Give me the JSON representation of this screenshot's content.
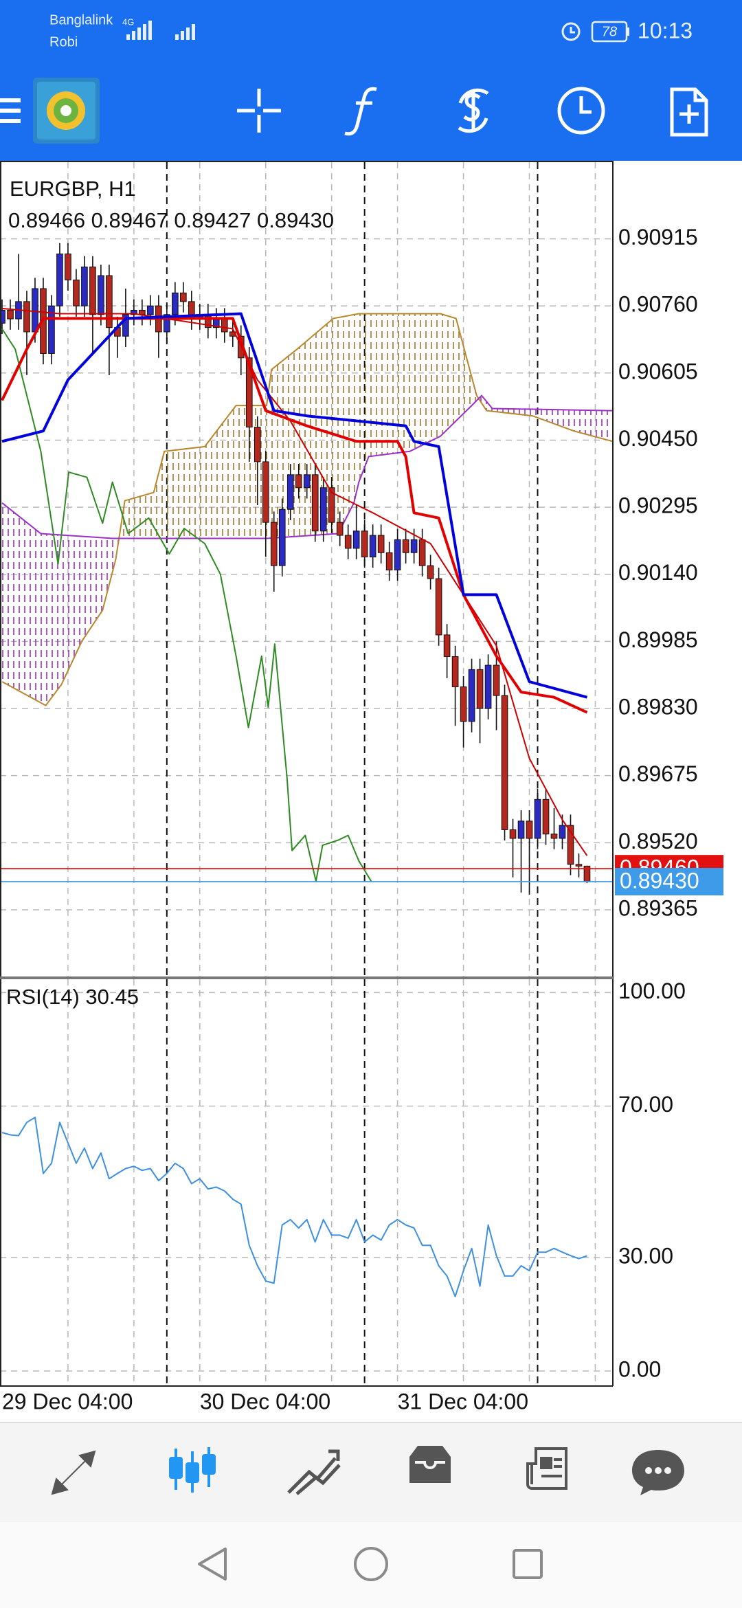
{
  "status_bar": {
    "carrier1": "Banglalink",
    "carrier2": "Robi",
    "network": "4G",
    "battery": "78",
    "time": "10:13"
  },
  "chart_data": [
    {
      "type": "candlestick",
      "title": "EURGBP, H1",
      "subtitle": "0.89466 0.89467 0.89427 0.89430",
      "x": [
        0,
        1,
        2,
        3,
        4,
        5,
        6,
        7,
        8,
        9,
        10,
        11,
        12,
        13,
        14,
        15,
        16,
        17,
        18,
        19,
        20,
        21,
        22,
        23,
        24,
        25,
        26,
        27,
        28,
        29,
        30,
        31,
        32,
        33,
        34,
        35,
        36,
        37,
        38,
        39,
        40,
        41,
        42,
        43,
        44,
        45,
        46,
        47,
        48,
        49,
        50,
        51,
        52,
        53,
        54,
        55,
        56,
        57,
        58,
        59,
        60,
        61,
        62,
        63,
        64,
        65,
        66,
        67,
        68,
        69,
        70,
        71
      ],
      "open": [
        0.9072,
        0.9075,
        0.9073,
        0.9077,
        0.907,
        0.908,
        0.9065,
        0.9076,
        0.9088,
        0.9082,
        0.9076,
        0.9085,
        0.9074,
        0.9083,
        0.9071,
        0.9069,
        0.9074,
        0.9075,
        0.9074,
        0.9076,
        0.907,
        0.9074,
        0.9079,
        0.9077,
        0.9073,
        0.9074,
        0.9071,
        0.9073,
        0.907,
        0.9069,
        0.9064,
        0.9048,
        0.904,
        0.9026,
        0.9016,
        0.9029,
        0.9037,
        0.9034,
        0.9037,
        0.9024,
        0.9034,
        0.9026,
        0.9023,
        0.902,
        0.9024,
        0.9018,
        0.9023,
        0.9019,
        0.9015,
        0.9022,
        0.9019,
        0.9022,
        0.9016,
        0.9013,
        0.9,
        0.8995,
        0.8988,
        0.898,
        0.8992,
        0.8983,
        0.8993,
        0.8986,
        0.8955,
        0.8953,
        0.8957,
        0.8953,
        0.8962,
        0.8954,
        0.8953,
        0.8956,
        0.8947,
        0.89466
      ],
      "high": [
        0.90775,
        0.90775,
        0.9088,
        0.90795,
        0.90825,
        0.90825,
        0.90785,
        0.90905,
        0.90905,
        0.90845,
        0.90875,
        0.90875,
        0.90855,
        0.90855,
        0.90735,
        0.908,
        0.90775,
        0.90775,
        0.90785,
        0.90785,
        0.90765,
        0.90815,
        0.90815,
        0.90795,
        0.90765,
        0.90765,
        0.90755,
        0.90755,
        0.90725,
        0.90715,
        0.90665,
        0.90505,
        0.90425,
        0.90285,
        0.90315,
        0.90395,
        0.90395,
        0.90395,
        0.90395,
        0.90365,
        0.90365,
        0.90285,
        0.90255,
        0.903,
        0.90265,
        0.90255,
        0.90255,
        0.90215,
        0.90245,
        0.90245,
        0.90245,
        0.90245,
        0.90185,
        0.90155,
        0.90025,
        0.89975,
        0.89905,
        0.89945,
        0.89945,
        0.89955,
        0.89985,
        0.89885,
        0.89575,
        0.89595,
        0.89595,
        0.89645,
        0.89645,
        0.896,
        0.89585,
        0.89585,
        0.89495,
        0.89467
      ],
      "low": [
        0.90695,
        0.90705,
        0.90705,
        0.906,
        0.90675,
        0.90625,
        0.90625,
        0.90735,
        0.90795,
        0.90735,
        0.90735,
        0.9065,
        0.90715,
        0.906,
        0.9064,
        0.90665,
        0.90715,
        0.90715,
        0.90715,
        0.9064,
        0.90675,
        0.90715,
        0.90745,
        0.90705,
        0.90705,
        0.90685,
        0.90685,
        0.90675,
        0.90665,
        0.906,
        0.904,
        0.903,
        0.9018,
        0.901,
        0.90135,
        0.90265,
        0.90315,
        0.90315,
        0.90215,
        0.90215,
        0.90235,
        0.90205,
        0.90175,
        0.90175,
        0.90155,
        0.90155,
        0.90165,
        0.90125,
        0.90125,
        0.90165,
        0.90165,
        0.90135,
        0.90105,
        0.89975,
        0.899,
        0.8979,
        0.8974,
        0.89775,
        0.8975,
        0.89805,
        0.8978,
        0.89525,
        0.8944,
        0.89405,
        0.894,
        0.89505,
        0.89515,
        0.89505,
        0.89505,
        0.89445,
        0.8944,
        0.89427
      ],
      "close": [
        0.9075,
        0.9073,
        0.9077,
        0.907,
        0.908,
        0.9065,
        0.9076,
        0.9088,
        0.9082,
        0.9076,
        0.9085,
        0.9074,
        0.9083,
        0.9071,
        0.9069,
        0.9074,
        0.9075,
        0.9074,
        0.9076,
        0.907,
        0.9074,
        0.9079,
        0.9077,
        0.9073,
        0.9074,
        0.9071,
        0.9073,
        0.907,
        0.9069,
        0.9064,
        0.9048,
        0.904,
        0.9026,
        0.9016,
        0.9029,
        0.9037,
        0.9034,
        0.9037,
        0.9024,
        0.9034,
        0.9026,
        0.9023,
        0.902,
        0.9024,
        0.9018,
        0.9023,
        0.9019,
        0.9015,
        0.9022,
        0.9019,
        0.9022,
        0.9016,
        0.9013,
        0.9,
        0.8995,
        0.8988,
        0.898,
        0.8992,
        0.8983,
        0.8993,
        0.8986,
        0.8955,
        0.8953,
        0.8957,
        0.8953,
        0.8962,
        0.8954,
        0.8953,
        0.8956,
        0.8947,
        0.89466,
        0.8943
      ],
      "up_color": "#2b2bc4",
      "down_color": "#b5281d",
      "ichimoku": {
        "up_color": "#a8762a",
        "down_color": "#9a2fc4",
        "senkou_a": {
          "color": "#b8862b",
          "x": [
            0,
            5.3,
            7.2,
            9.7,
            12.2,
            13.8,
            14.9,
            18.4,
            19.7,
            24.6,
            28.4,
            32.1,
            32.7,
            35.8,
            40.2,
            43.3,
            53.2,
            55.1,
            57.6,
            58.8,
            64.4,
            69.4,
            74.1
          ],
          "values": [
            0.89892,
            0.89837,
            0.89885,
            0.89986,
            0.90057,
            0.90175,
            0.9031,
            0.90329,
            0.90424,
            0.90435,
            0.9053,
            0.9053,
            0.90613,
            0.9066,
            0.90731,
            0.90742,
            0.90742,
            0.90731,
            0.90553,
            0.90518,
            0.90506,
            0.90471,
            0.90447
          ]
        },
        "senkou_b": {
          "color": "#9b30c8",
          "x": [
            0,
            4.7,
            13.4,
            32.1,
            40.8,
            42.7,
            43.3,
            44.5,
            49.5,
            53.2,
            57,
            58.2,
            59.5,
            74.1
          ],
          "values": [
            0.90305,
            0.90234,
            0.90223,
            0.90223,
            0.90234,
            0.90305,
            0.90353,
            0.90412,
            0.90424,
            0.90459,
            0.9053,
            0.90553,
            0.90523,
            0.90518
          ]
        }
      },
      "lines": [
        {
          "color": "#cc0000",
          "bold": false,
          "x": [
            0,
            7,
            16,
            28,
            31,
            35,
            40,
            45,
            52,
            56,
            60,
            64,
            68,
            71
          ],
          "values": [
            0.90754,
            0.90742,
            0.90742,
            0.90707,
            0.90589,
            0.90494,
            0.90329,
            0.90282,
            0.90211,
            0.90093,
            0.89975,
            0.89715,
            0.89573,
            0.8949
          ]
        },
        {
          "color": "#2e8b22",
          "bold": false,
          "x": [
            0,
            1.6,
            4.7,
            6.8,
            8.1,
            10.3,
            12.2,
            13.4,
            15.3,
            17.8,
            20.3,
            22.1,
            24.6,
            26.5,
            28.4,
            29.9,
            31.5,
            32.3,
            33.1,
            34.6,
            35.2,
            36.8,
            38.1,
            38.9,
            40.8,
            42.0,
            43.3,
            44.8
          ],
          "values": [
            0.90707,
            0.9066,
            0.90424,
            0.90164,
            0.90376,
            0.90364,
            0.90258,
            0.90353,
            0.90234,
            0.9027,
            0.90187,
            0.90246,
            0.90211,
            0.9014,
            0.89951,
            0.89786,
            0.89951,
            0.89833,
            0.89979,
            0.89667,
            0.89502,
            0.89537,
            0.89431,
            0.89514,
            0.89526,
            0.89537,
            0.89478,
            0.89431
          ]
        },
        {
          "color": "#e00000",
          "bold": true,
          "x": [
            0,
            3,
            5,
            28,
            32,
            37,
            43,
            48,
            49,
            50,
            53,
            56,
            60,
            63,
            67,
            71
          ],
          "values": [
            0.90542,
            0.9066,
            0.90731,
            0.90731,
            0.90518,
            0.90483,
            0.90447,
            0.90447,
            0.90412,
            0.90282,
            0.9027,
            0.90093,
            0.89951,
            0.89868,
            0.89856,
            0.89821
          ]
        },
        {
          "color": "#0000dd",
          "bold": true,
          "x": [
            0,
            5,
            8,
            15,
            29,
            33,
            37,
            49,
            50,
            53,
            56,
            60,
            64,
            71
          ],
          "values": [
            0.90447,
            0.90471,
            0.90589,
            0.90731,
            0.90742,
            0.90518,
            0.90506,
            0.90483,
            0.90447,
            0.90435,
            0.90093,
            0.90093,
            0.89892,
            0.89856
          ]
        }
      ],
      "price_tags": [
        {
          "value": 0.8946,
          "label": "0.89460",
          "color": "#e31010"
        },
        {
          "value": 0.8943,
          "label": "0.89430",
          "color": "#3d9be9"
        }
      ],
      "xlim": [
        -0.25,
        74.13
      ],
      "ylim": [
        0.89211,
        0.91092
      ],
      "yticks": [
        0.90915,
        {
          "value": 0.9076,
          "label": "0.90760"
        },
        0.90605,
        {
          "value": 0.9045,
          "label": "0.90450"
        },
        0.90295,
        {
          "value": 0.9014,
          "label": "0.90140"
        },
        0.89985,
        {
          "value": 0.8983,
          "label": "0.89830"
        },
        0.89675,
        {
          "value": 0.8952,
          "label": "0.89520"
        },
        0.89365
      ],
      "xgrid": [
        8,
        16,
        24,
        32,
        40,
        48,
        56,
        64,
        72
      ],
      "separators": [
        20,
        44,
        65
      ],
      "grid": true
    },
    {
      "type": "line",
      "title": "RSI(14) 30.45",
      "x": [
        0,
        1,
        2,
        3,
        4,
        5,
        6,
        7,
        8,
        9,
        10,
        11,
        12,
        13,
        14,
        15,
        16,
        17,
        18,
        19,
        20,
        21,
        22,
        23,
        24,
        25,
        26,
        27,
        28,
        29,
        30,
        31,
        32,
        33,
        34,
        35,
        36,
        37,
        38,
        39,
        40,
        41,
        42,
        43,
        44,
        45,
        46,
        47,
        48,
        49,
        50,
        51,
        52,
        53,
        54,
        55,
        56,
        57,
        58,
        59,
        60,
        61,
        62,
        63,
        64,
        65,
        66,
        67,
        68,
        69,
        70,
        71
      ],
      "series": [
        {
          "color": "#3d8fe0",
          "values": [
            63.0,
            62.4,
            62.2,
            65.7,
            67.0,
            52.2,
            54.9,
            65.7,
            60.3,
            54.9,
            58.9,
            53.5,
            57.6,
            50.8,
            52.2,
            53.5,
            54.1,
            53.0,
            53.5,
            50.3,
            52.2,
            54.9,
            53.5,
            49.5,
            50.8,
            48.1,
            48.6,
            47.6,
            45.4,
            44.1,
            33.2,
            27.8,
            23.8,
            23.2,
            38.6,
            40.0,
            37.8,
            40.0,
            34.1,
            40.0,
            35.9,
            35.9,
            35.1,
            40.0,
            34.1,
            35.9,
            34.6,
            38.6,
            40.0,
            38.6,
            37.8,
            33.2,
            33.2,
            27.8,
            25.1,
            19.7,
            26.5,
            32.4,
            22.4,
            38.6,
            30.5,
            25.1,
            25.1,
            27.8,
            26.5,
            31.4,
            31.4,
            32.4,
            31.4,
            30.5,
            29.7,
            30.45
          ]
        }
      ],
      "xlim": [
        -0.25,
        74.13
      ],
      "ylim": [
        -3.78,
        103.51
      ],
      "yticks": [
        {
          "value": 100,
          "label": "100.00"
        },
        {
          "value": 70,
          "label": "70.00"
        },
        {
          "value": 30,
          "label": "30.00"
        },
        {
          "value": 0,
          "label": "0.00"
        }
      ],
      "xticks": [
        {
          "value": 0,
          "label": "29 Dec 04:00"
        },
        {
          "value": 24,
          "label": "30 Dec 04:00"
        },
        {
          "value": 48,
          "label": "31 Dec 04:00"
        }
      ],
      "xgrid": [
        8,
        16,
        24,
        32,
        40,
        48,
        56,
        64,
        72
      ],
      "separators": [
        20,
        44,
        65
      ],
      "grid": true
    }
  ]
}
